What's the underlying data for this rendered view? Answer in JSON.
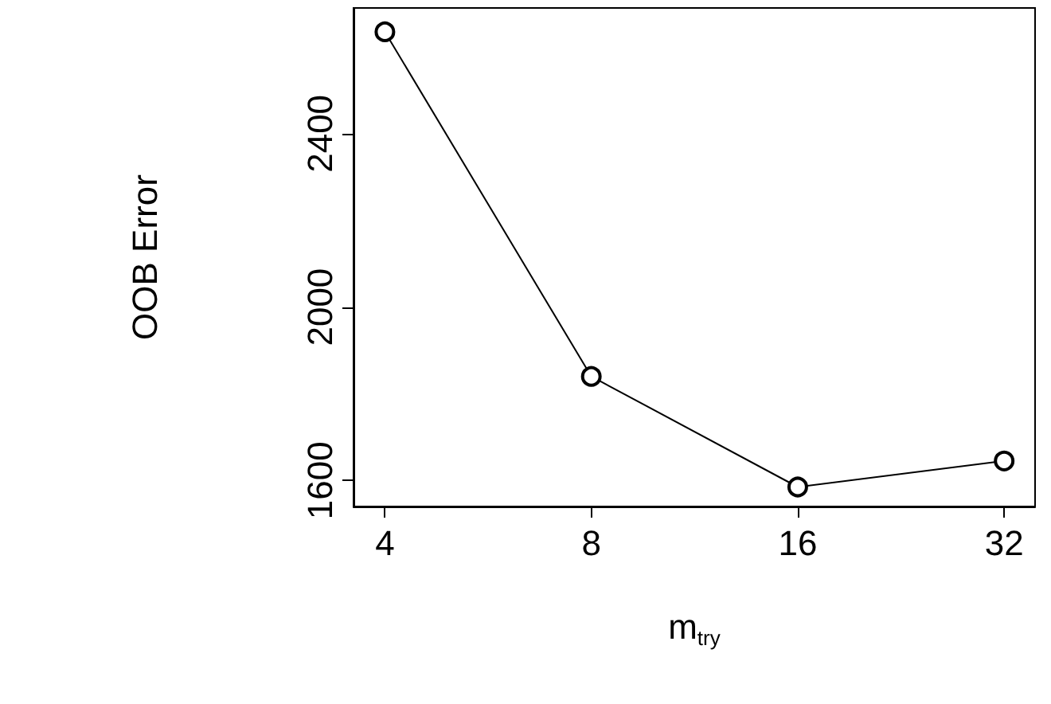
{
  "chart_data": {
    "type": "line",
    "xlabel": "m$_{try}$",
    "ylabel": "OOB Error",
    "x": [
      4,
      8,
      16,
      32
    ],
    "values": [
      2635,
      1840,
      1585,
      1645
    ],
    "color": "#000000",
    "marker": "circle",
    "line_style": "solid",
    "log": "x",
    "xlim": [
      3.6,
      35.5
    ],
    "xticks": [
      4,
      8,
      16,
      32
    ],
    "ylim": [
      1540,
      2690
    ],
    "yticks": [
      1600,
      2000,
      2400
    ],
    "grid": false
  }
}
